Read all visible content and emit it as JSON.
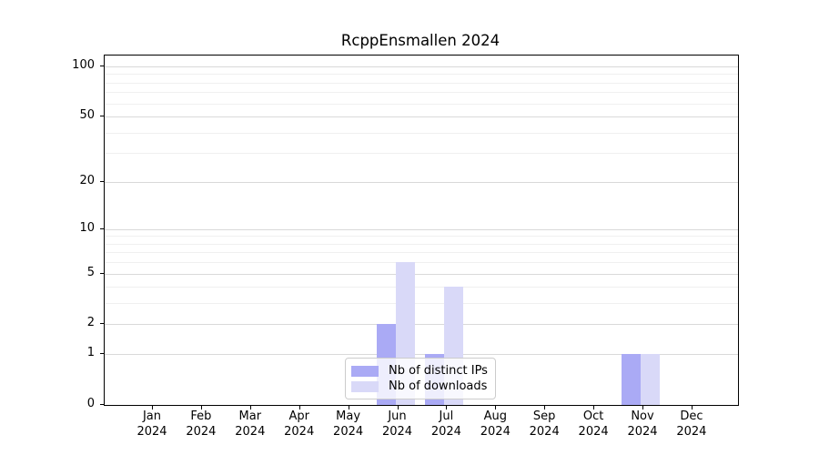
{
  "chart_data": {
    "type": "bar",
    "title": "RcppEnsmallen 2024",
    "x_categories": [
      "Jan",
      "Feb",
      "Mar",
      "Apr",
      "May",
      "Jun",
      "Jul",
      "Aug",
      "Sep",
      "Oct",
      "Nov",
      "Dec"
    ],
    "x_year_label": "2024",
    "series": [
      {
        "name": "Nb of distinct IPs",
        "color": "#aaaaf5",
        "values": [
          0,
          0,
          0,
          0,
          0,
          2,
          1,
          0,
          0,
          0,
          1,
          0
        ]
      },
      {
        "name": "Nb of downloads",
        "color": "#d9d9f8",
        "values": [
          0,
          0,
          0,
          0,
          0,
          6,
          4,
          0,
          0,
          0,
          1,
          0
        ]
      }
    ],
    "yscale": "log1p",
    "ylim": [
      0,
      116
    ],
    "yticks": [
      0,
      1,
      2,
      5,
      10,
      20,
      50,
      100
    ],
    "minor_gridlines": [
      3,
      4,
      6,
      7,
      8,
      9,
      30,
      40,
      60,
      70,
      80,
      90
    ],
    "grid": "on",
    "legend_position": "lower center",
    "colors": {
      "major_grid": "#d9d9d9",
      "minor_grid": "#f0f0f0",
      "axis": "#000000",
      "legend_border": "#cccccc"
    }
  }
}
